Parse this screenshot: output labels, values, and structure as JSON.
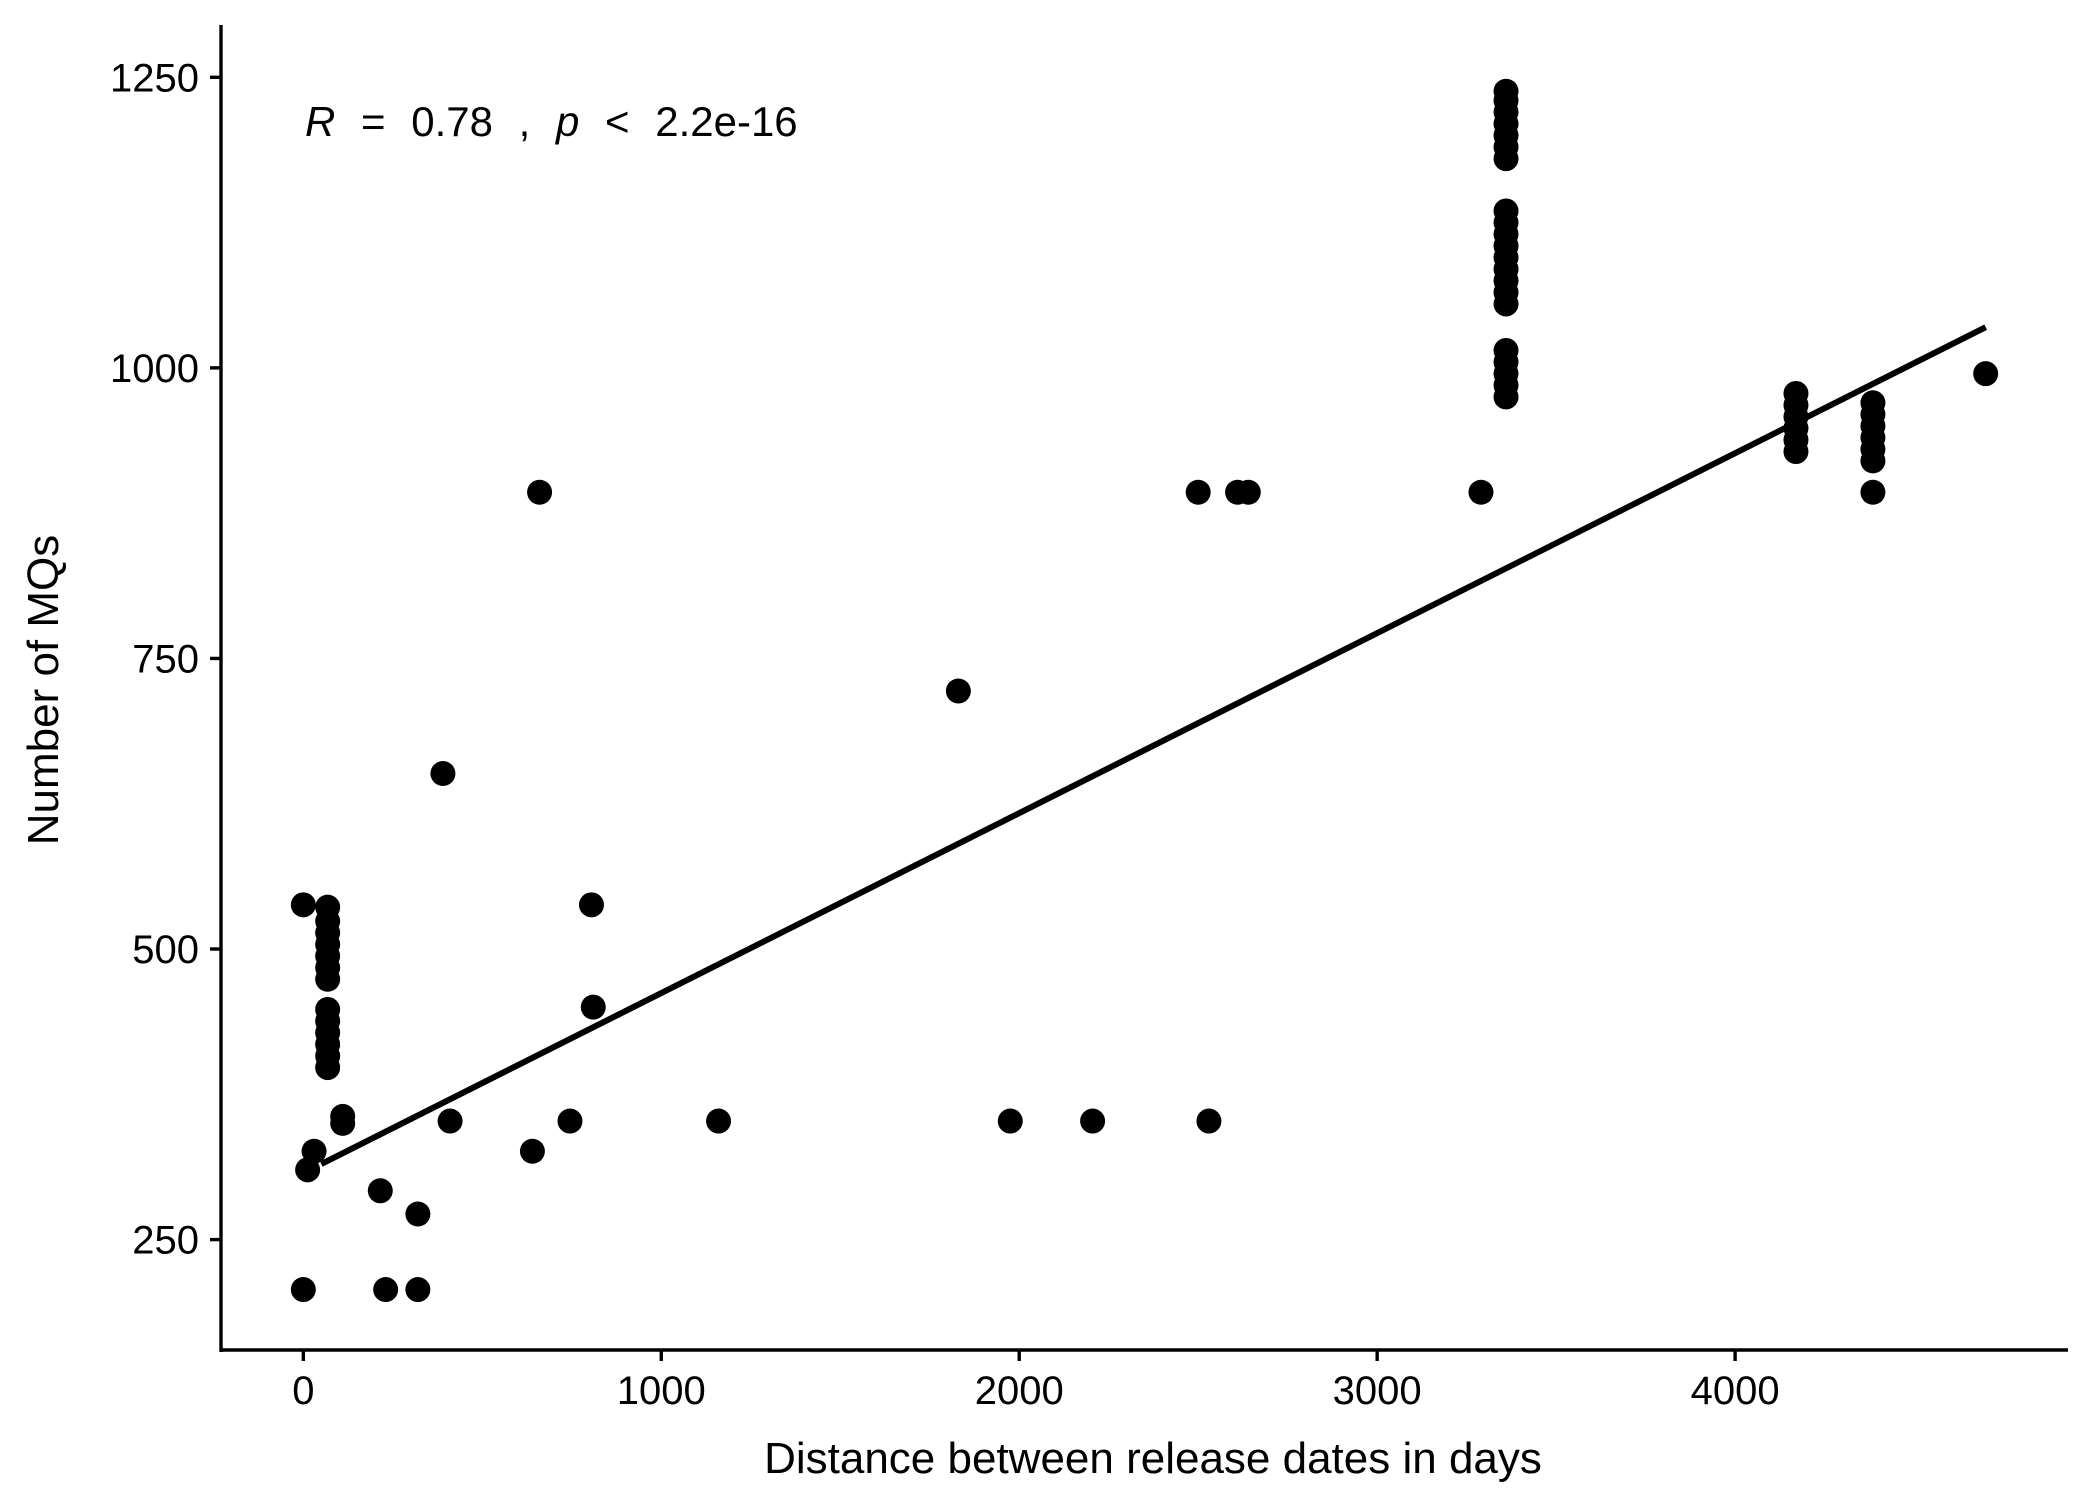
{
  "chart_data": {
    "type": "scatter",
    "xlabel": "Distance between release dates in days",
    "ylabel": "Number of MQs",
    "xlim": [
      -230,
      4930
    ],
    "ylim": [
      155,
      1295
    ],
    "x_ticks": [
      0,
      1000,
      2000,
      3000,
      4000
    ],
    "y_ticks": [
      250,
      500,
      750,
      1000,
      1250
    ],
    "grid": false,
    "annotation": {
      "r_symbol": "R",
      "r_eq": "=",
      "r_value": "0.78",
      "separator": ",",
      "p_symbol": "p",
      "p_op": "<",
      "p_value": "2.2e-16"
    },
    "regression_line": {
      "x": [
        50,
        4700
      ],
      "y": [
        315,
        1035
      ]
    },
    "series": [
      {
        "points": [
          [
            0,
            207
          ],
          [
            0,
            538
          ],
          [
            12,
            310
          ],
          [
            30,
            326
          ],
          [
            68,
            398
          ],
          [
            68,
            408
          ],
          [
            68,
            418
          ],
          [
            68,
            428
          ],
          [
            68,
            438
          ],
          [
            68,
            448
          ],
          [
            68,
            474
          ],
          [
            68,
            484
          ],
          [
            68,
            494
          ],
          [
            68,
            504
          ],
          [
            68,
            514
          ],
          [
            68,
            524
          ],
          [
            68,
            536
          ],
          [
            110,
            350
          ],
          [
            110,
            356
          ],
          [
            215,
            292
          ],
          [
            230,
            207
          ],
          [
            320,
            207
          ],
          [
            320,
            272
          ],
          [
            390,
            651
          ],
          [
            410,
            352
          ],
          [
            640,
            326
          ],
          [
            660,
            893
          ],
          [
            745,
            352
          ],
          [
            805,
            538
          ],
          [
            810,
            450
          ],
          [
            1160,
            352
          ],
          [
            1830,
            722
          ],
          [
            1975,
            352
          ],
          [
            2205,
            352
          ],
          [
            2500,
            893
          ],
          [
            2530,
            352
          ],
          [
            2610,
            893
          ],
          [
            2640,
            893
          ],
          [
            3290,
            893
          ],
          [
            3360,
            975
          ],
          [
            3360,
            985
          ],
          [
            3360,
            995
          ],
          [
            3360,
            1005
          ],
          [
            3360,
            1015
          ],
          [
            3360,
            1055
          ],
          [
            3360,
            1065
          ],
          [
            3360,
            1075
          ],
          [
            3360,
            1085
          ],
          [
            3360,
            1095
          ],
          [
            3360,
            1105
          ],
          [
            3360,
            1115
          ],
          [
            3360,
            1125
          ],
          [
            3360,
            1135
          ],
          [
            3360,
            1180
          ],
          [
            3360,
            1190
          ],
          [
            3360,
            1200
          ],
          [
            3360,
            1210
          ],
          [
            3360,
            1220
          ],
          [
            3360,
            1230
          ],
          [
            3360,
            1238
          ],
          [
            4170,
            928
          ],
          [
            4170,
            938
          ],
          [
            4170,
            948
          ],
          [
            4170,
            958
          ],
          [
            4170,
            968
          ],
          [
            4170,
            978
          ],
          [
            4385,
            893
          ],
          [
            4385,
            920
          ],
          [
            4385,
            930
          ],
          [
            4385,
            940
          ],
          [
            4385,
            950
          ],
          [
            4385,
            960
          ],
          [
            4385,
            970
          ],
          [
            4700,
            995
          ]
        ]
      }
    ]
  }
}
